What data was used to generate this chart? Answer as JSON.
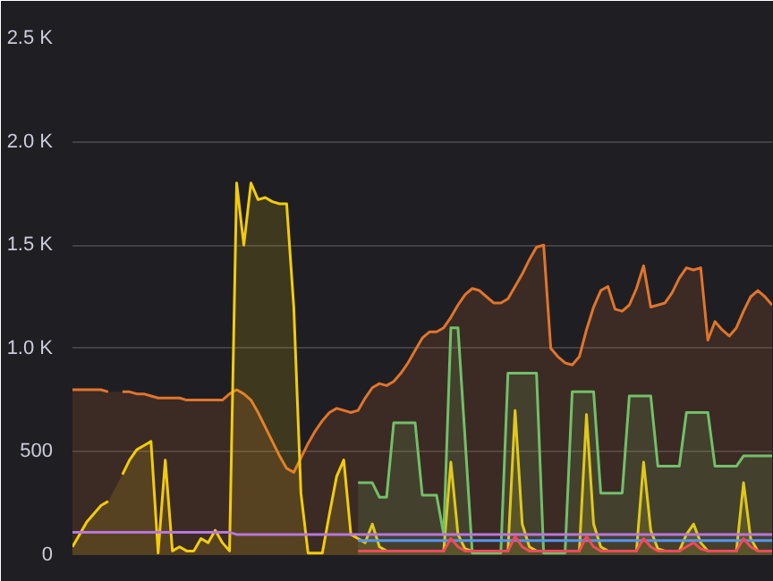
{
  "chart_data": {
    "type": "area",
    "categories": [
      null,
      null,
      null,
      null,
      null,
      null,
      null,
      null,
      null,
      null,
      null,
      null,
      null,
      null,
      null,
      null,
      null,
      null,
      null,
      null,
      null,
      null,
      null,
      null,
      null,
      null,
      null,
      null,
      null,
      null,
      null,
      null,
      null,
      null,
      null,
      null,
      null,
      null,
      null,
      null,
      null,
      null,
      null,
      null,
      null,
      null,
      null,
      null,
      null,
      null,
      null,
      null,
      null,
      null,
      null,
      null,
      null,
      null,
      null,
      null,
      null,
      null,
      null,
      null,
      null,
      null,
      null,
      null,
      null,
      null,
      null,
      null,
      null,
      null,
      null,
      null,
      null,
      null,
      null,
      null,
      null,
      null,
      null,
      null,
      null,
      null,
      null,
      null,
      null,
      null,
      null,
      null,
      null,
      null,
      null,
      null,
      null,
      null,
      null
    ],
    "ylim": [
      0,
      2500
    ],
    "yticks": [
      0,
      500,
      {
        "value": 1000,
        "label": "1.0 K"
      },
      {
        "value": 1500,
        "label": "1.5 K"
      },
      {
        "value": 2000,
        "label": "2.0 K"
      },
      {
        "value": 2500,
        "label": "2.5 K"
      }
    ],
    "grid": "y",
    "series": [
      {
        "color": "#e0752d",
        "values": [
          800,
          800,
          800,
          800,
          800,
          790,
          null,
          790,
          790,
          780,
          780,
          770,
          760,
          760,
          760,
          760,
          750,
          750,
          750,
          750,
          750,
          750,
          780,
          800,
          780,
          750,
          690,
          620,
          550,
          480,
          420,
          400,
          470,
          540,
          600,
          650,
          690,
          710,
          700,
          690,
          700,
          760,
          810,
          830,
          820,
          840,
          880,
          930,
          990,
          1050,
          1080,
          1080,
          1100,
          1150,
          1210,
          1260,
          1290,
          1280,
          1250,
          1220,
          1220,
          1240,
          1300,
          1360,
          1430,
          1490,
          1500,
          1000,
          960,
          930,
          920,
          960,
          1090,
          1200,
          1280,
          1300,
          1190,
          1180,
          1210,
          1290,
          1400,
          1200,
          1210,
          1220,
          1270,
          1340,
          1390,
          1380,
          1390,
          1040,
          1130,
          1090,
          1060,
          1100,
          1180,
          1250,
          1280,
          1250,
          1210
        ]
      },
      {
        "color": "#f2cc0c",
        "values": [
          40,
          100,
          160,
          200,
          240,
          260,
          null,
          390,
          460,
          510,
          530,
          550,
          10,
          460,
          20,
          40,
          20,
          20,
          80,
          60,
          120,
          60,
          20,
          1800,
          1500,
          1800,
          1720,
          1730,
          1710,
          1700,
          1700,
          1200,
          300,
          10,
          10,
          10,
          200,
          380,
          460,
          100,
          80,
          60,
          150,
          40,
          20,
          20,
          20,
          20,
          20,
          20,
          20,
          20,
          20,
          450,
          100,
          30,
          20,
          20,
          20,
          20,
          20,
          20,
          700,
          150,
          40,
          20,
          20,
          20,
          20,
          20,
          20,
          20,
          680,
          150,
          40,
          20,
          20,
          20,
          20,
          20,
          450,
          120,
          30,
          20,
          20,
          20,
          100,
          150,
          60,
          20,
          20,
          20,
          20,
          20,
          350,
          80,
          20,
          20,
          20
        ]
      },
      {
        "type": "area",
        "color": "#73bf69",
        "values": [
          null,
          null,
          null,
          null,
          null,
          null,
          null,
          null,
          null,
          null,
          null,
          null,
          null,
          null,
          null,
          null,
          null,
          null,
          null,
          null,
          null,
          null,
          null,
          null,
          null,
          null,
          null,
          null,
          null,
          null,
          null,
          null,
          null,
          null,
          null,
          null,
          null,
          null,
          null,
          null,
          350,
          350,
          350,
          280,
          280,
          640,
          640,
          640,
          640,
          290,
          290,
          290,
          100,
          1100,
          1100,
          560,
          10,
          10,
          10,
          10,
          10,
          880,
          880,
          880,
          880,
          880,
          10,
          10,
          10,
          10,
          790,
          790,
          790,
          790,
          300,
          300,
          300,
          300,
          770,
          770,
          770,
          770,
          430,
          430,
          430,
          430,
          690,
          690,
          690,
          690,
          430,
          430,
          430,
          430,
          480,
          480,
          480,
          480,
          480
        ]
      },
      {
        "type": "line",
        "color": "#b877d9",
        "values": [
          110,
          110,
          110,
          110,
          110,
          110,
          110,
          110,
          110,
          110,
          110,
          110,
          110,
          110,
          110,
          110,
          110,
          110,
          110,
          110,
          110,
          110,
          110,
          100,
          100,
          100,
          100,
          100,
          100,
          100,
          100,
          100,
          100,
          100,
          100,
          100,
          100,
          100,
          100,
          100,
          100,
          100,
          100,
          100,
          100,
          100,
          100,
          100,
          100,
          100,
          100,
          100,
          100,
          100,
          100,
          100,
          100,
          100,
          100,
          100,
          100,
          100,
          100,
          100,
          100,
          100,
          100,
          100,
          100,
          100,
          100,
          100,
          100,
          100,
          100,
          100,
          100,
          100,
          100,
          100,
          100,
          100,
          100,
          100,
          100,
          100,
          100,
          100,
          100,
          100,
          100,
          100,
          100,
          100,
          100,
          100,
          100,
          100,
          100
        ]
      },
      {
        "type": "line",
        "color": "#5794f2",
        "values": [
          null,
          null,
          null,
          null,
          null,
          null,
          null,
          null,
          null,
          null,
          null,
          null,
          null,
          null,
          null,
          null,
          null,
          null,
          null,
          null,
          null,
          null,
          null,
          null,
          null,
          null,
          null,
          null,
          null,
          null,
          null,
          null,
          null,
          null,
          null,
          null,
          null,
          null,
          null,
          null,
          70,
          70,
          70,
          70,
          70,
          70,
          70,
          70,
          70,
          70,
          70,
          70,
          70,
          70,
          70,
          70,
          70,
          70,
          70,
          70,
          70,
          70,
          70,
          70,
          70,
          70,
          70,
          70,
          70,
          70,
          70,
          70,
          70,
          70,
          70,
          70,
          70,
          70,
          70,
          70,
          70,
          70,
          70,
          70,
          70,
          70,
          70,
          70,
          70,
          70,
          70,
          70,
          70,
          70,
          70,
          70,
          70,
          70,
          70
        ]
      },
      {
        "type": "line",
        "color": "#f2495c",
        "values": [
          null,
          null,
          null,
          null,
          null,
          null,
          null,
          null,
          null,
          null,
          null,
          null,
          null,
          null,
          null,
          null,
          null,
          null,
          null,
          null,
          null,
          null,
          null,
          null,
          null,
          null,
          null,
          null,
          null,
          null,
          null,
          null,
          null,
          null,
          null,
          null,
          null,
          null,
          null,
          null,
          20,
          20,
          20,
          20,
          20,
          20,
          20,
          20,
          20,
          20,
          20,
          20,
          20,
          80,
          40,
          20,
          20,
          20,
          20,
          20,
          20,
          20,
          90,
          40,
          20,
          20,
          20,
          20,
          20,
          20,
          20,
          20,
          90,
          40,
          20,
          20,
          20,
          20,
          20,
          20,
          80,
          40,
          20,
          20,
          20,
          20,
          40,
          60,
          30,
          20,
          20,
          20,
          20,
          20,
          80,
          40,
          20,
          20,
          20
        ]
      }
    ]
  }
}
